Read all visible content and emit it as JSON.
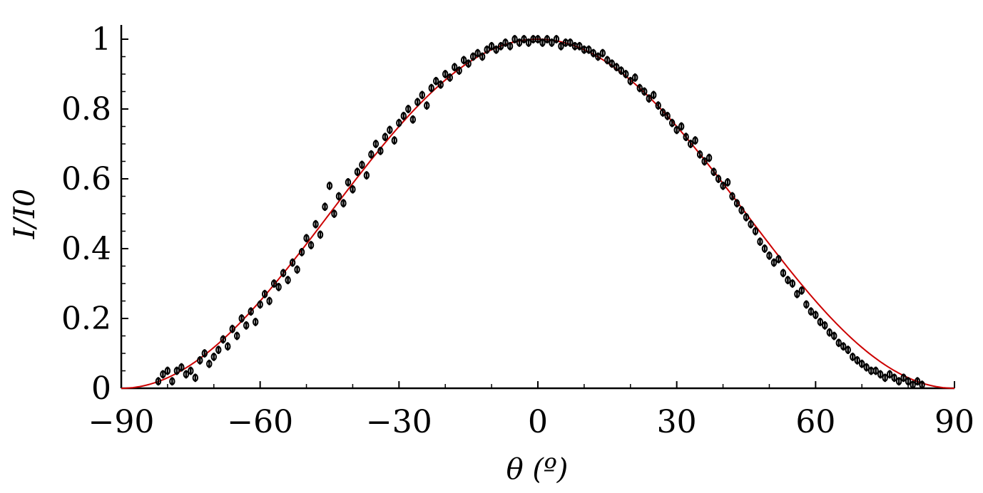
{
  "chart_data": {
    "type": "scatter",
    "title": "",
    "xlabel": "θ (º)",
    "ylabel": "I/I0",
    "xlim": [
      -90,
      90
    ],
    "ylim": [
      0,
      1
    ],
    "x_ticks": [
      -90,
      -60,
      -30,
      0,
      30,
      60,
      90
    ],
    "x_tick_labels": [
      "−90",
      "−60",
      "−30",
      "0",
      "30",
      "60",
      "90"
    ],
    "y_ticks": [
      0,
      0.2,
      0.4,
      0.6,
      0.8,
      1
    ],
    "y_tick_labels": [
      "0",
      "0.2",
      "0.4",
      "0.6",
      "0.8",
      "1"
    ],
    "grid": false,
    "legend": "none",
    "colors": {
      "points": "#000000",
      "fit": "#cc0000"
    },
    "series": [
      {
        "kind": "measurements",
        "error_bar": 0.012,
        "points": [
          [
            -82,
            0.02
          ],
          [
            -81,
            0.04
          ],
          [
            -80,
            0.05
          ],
          [
            -79,
            0.02
          ],
          [
            -78,
            0.05
          ],
          [
            -77,
            0.06
          ],
          [
            -76,
            0.04
          ],
          [
            -75,
            0.05
          ],
          [
            -74,
            0.03
          ],
          [
            -73,
            0.08
          ],
          [
            -72,
            0.1
          ],
          [
            -71,
            0.07
          ],
          [
            -70,
            0.09
          ],
          [
            -69,
            0.11
          ],
          [
            -68,
            0.14
          ],
          [
            -67,
            0.12
          ],
          [
            -66,
            0.17
          ],
          [
            -65,
            0.15
          ],
          [
            -64,
            0.2
          ],
          [
            -63,
            0.18
          ],
          [
            -62,
            0.22
          ],
          [
            -61,
            0.19
          ],
          [
            -60,
            0.24
          ],
          [
            -59,
            0.27
          ],
          [
            -58,
            0.25
          ],
          [
            -57,
            0.3
          ],
          [
            -56,
            0.29
          ],
          [
            -55,
            0.33
          ],
          [
            -54,
            0.31
          ],
          [
            -53,
            0.36
          ],
          [
            -52,
            0.34
          ],
          [
            -51,
            0.39
          ],
          [
            -50,
            0.43
          ],
          [
            -49,
            0.41
          ],
          [
            -48,
            0.47
          ],
          [
            -47,
            0.44
          ],
          [
            -46,
            0.52
          ],
          [
            -45,
            0.58
          ],
          [
            -44,
            0.5
          ],
          [
            -43,
            0.55
          ],
          [
            -42,
            0.53
          ],
          [
            -41,
            0.59
          ],
          [
            -40,
            0.57
          ],
          [
            -39,
            0.62
          ],
          [
            -38,
            0.64
          ],
          [
            -37,
            0.61
          ],
          [
            -36,
            0.67
          ],
          [
            -35,
            0.7
          ],
          [
            -34,
            0.68
          ],
          [
            -33,
            0.72
          ],
          [
            -32,
            0.74
          ],
          [
            -31,
            0.71
          ],
          [
            -30,
            0.76
          ],
          [
            -29,
            0.78
          ],
          [
            -28,
            0.8
          ],
          [
            -27,
            0.77
          ],
          [
            -26,
            0.82
          ],
          [
            -25,
            0.84
          ],
          [
            -24,
            0.81
          ],
          [
            -23,
            0.86
          ],
          [
            -22,
            0.88
          ],
          [
            -21,
            0.87
          ],
          [
            -20,
            0.9
          ],
          [
            -19,
            0.89
          ],
          [
            -18,
            0.92
          ],
          [
            -17,
            0.91
          ],
          [
            -16,
            0.94
          ],
          [
            -15,
            0.93
          ],
          [
            -14,
            0.95
          ],
          [
            -13,
            0.96
          ],
          [
            -12,
            0.95
          ],
          [
            -11,
            0.97
          ],
          [
            -10,
            0.98
          ],
          [
            -9,
            0.97
          ],
          [
            -8,
            0.98
          ],
          [
            -7,
            0.99
          ],
          [
            -6,
            0.98
          ],
          [
            -5,
            1.0
          ],
          [
            -4,
            0.99
          ],
          [
            -3,
            1.0
          ],
          [
            -2,
            0.99
          ],
          [
            -1,
            1.0
          ],
          [
            0,
            1.0
          ],
          [
            1,
            0.99
          ],
          [
            2,
            1.0
          ],
          [
            3,
            0.99
          ],
          [
            4,
            1.0
          ],
          [
            5,
            0.98
          ],
          [
            6,
            0.99
          ],
          [
            7,
            0.99
          ],
          [
            8,
            0.98
          ],
          [
            9,
            0.98
          ],
          [
            10,
            0.97
          ],
          [
            11,
            0.97
          ],
          [
            12,
            0.96
          ],
          [
            13,
            0.95
          ],
          [
            14,
            0.96
          ],
          [
            15,
            0.94
          ],
          [
            16,
            0.93
          ],
          [
            17,
            0.92
          ],
          [
            18,
            0.91
          ],
          [
            19,
            0.9
          ],
          [
            20,
            0.88
          ],
          [
            21,
            0.89
          ],
          [
            22,
            0.86
          ],
          [
            23,
            0.85
          ],
          [
            24,
            0.83
          ],
          [
            25,
            0.84
          ],
          [
            26,
            0.81
          ],
          [
            27,
            0.79
          ],
          [
            28,
            0.78
          ],
          [
            29,
            0.76
          ],
          [
            30,
            0.74
          ],
          [
            31,
            0.75
          ],
          [
            32,
            0.72
          ],
          [
            33,
            0.7
          ],
          [
            34,
            0.71
          ],
          [
            35,
            0.67
          ],
          [
            36,
            0.65
          ],
          [
            37,
            0.66
          ],
          [
            38,
            0.62
          ],
          [
            39,
            0.6
          ],
          [
            40,
            0.58
          ],
          [
            41,
            0.59
          ],
          [
            42,
            0.55
          ],
          [
            43,
            0.53
          ],
          [
            44,
            0.51
          ],
          [
            45,
            0.49
          ],
          [
            46,
            0.47
          ],
          [
            47,
            0.45
          ],
          [
            48,
            0.42
          ],
          [
            49,
            0.4
          ],
          [
            50,
            0.38
          ],
          [
            51,
            0.36
          ],
          [
            52,
            0.37
          ],
          [
            53,
            0.33
          ],
          [
            54,
            0.31
          ],
          [
            55,
            0.3
          ],
          [
            56,
            0.27
          ],
          [
            57,
            0.28
          ],
          [
            58,
            0.24
          ],
          [
            59,
            0.22
          ],
          [
            60,
            0.21
          ],
          [
            61,
            0.19
          ],
          [
            62,
            0.18
          ],
          [
            63,
            0.16
          ],
          [
            64,
            0.15
          ],
          [
            65,
            0.13
          ],
          [
            66,
            0.12
          ],
          [
            67,
            0.11
          ],
          [
            68,
            0.09
          ],
          [
            69,
            0.08
          ],
          [
            70,
            0.07
          ],
          [
            71,
            0.06
          ],
          [
            72,
            0.05
          ],
          [
            73,
            0.05
          ],
          [
            74,
            0.04
          ],
          [
            75,
            0.03
          ],
          [
            76,
            0.04
          ],
          [
            77,
            0.03
          ],
          [
            78,
            0.02
          ],
          [
            79,
            0.03
          ],
          [
            80,
            0.02
          ],
          [
            81,
            0.01
          ],
          [
            82,
            0.02
          ],
          [
            83,
            0.01
          ]
        ]
      },
      {
        "kind": "fit",
        "function": "cos^2(θ)"
      }
    ]
  }
}
